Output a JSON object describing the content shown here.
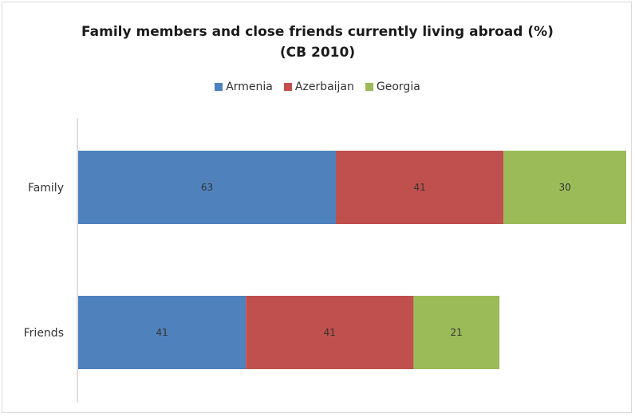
{
  "chart_data": {
    "type": "bar",
    "orientation": "horizontal",
    "stacked": true,
    "title": "Family members and close friends currently living abroad (%)",
    "subtitle": "(CB 2010)",
    "categories": [
      "Family",
      "Friends"
    ],
    "series": [
      {
        "name": "Armenia",
        "color": "#4f81bd",
        "values": [
          63,
          41
        ]
      },
      {
        "name": "Azerbaijan",
        "color": "#c0504d",
        "values": [
          41,
          41
        ]
      },
      {
        "name": "Georgia",
        "color": "#9bbb59",
        "values": [
          30,
          21
        ]
      }
    ],
    "legend_position": "top",
    "grid": false,
    "xlim": [
      0,
      134
    ]
  }
}
